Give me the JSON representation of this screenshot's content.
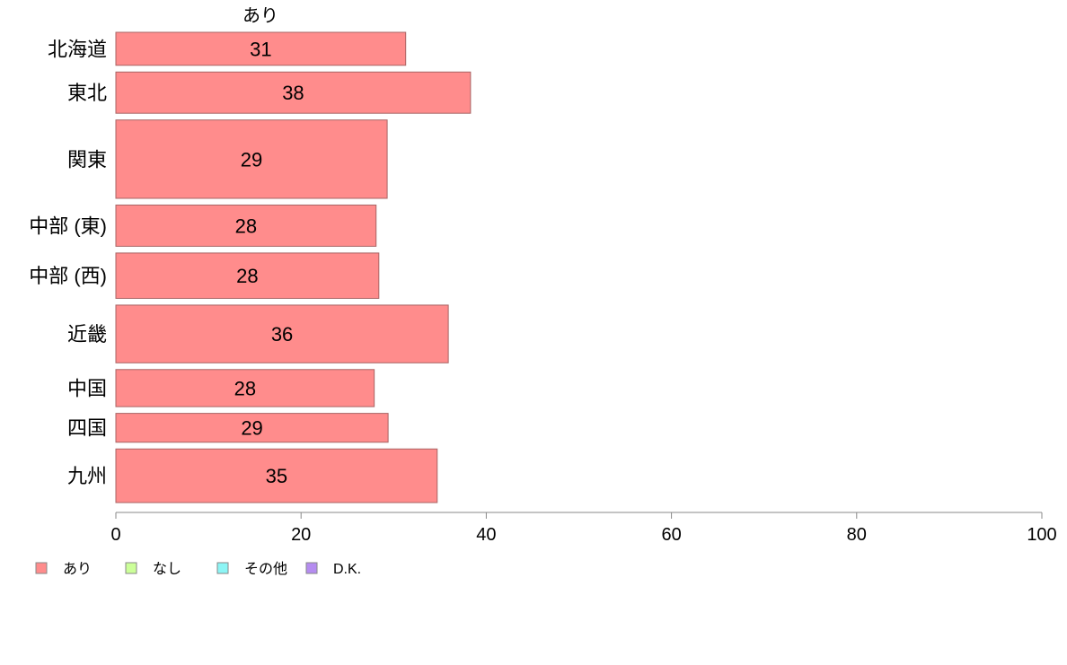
{
  "chart_data": {
    "type": "bar",
    "orientation": "horizontal",
    "title": "",
    "series_header": "あり",
    "categories": [
      "北海道",
      "東北",
      "関東",
      "中部 (東)",
      "中部 (西)",
      "近畿",
      "中国",
      "四国",
      "九州"
    ],
    "category_weights": [
      8,
      10,
      19,
      10,
      11,
      14,
      9,
      7,
      13
    ],
    "series": [
      {
        "name": "あり",
        "values": [
          31.3,
          38.3,
          29.3,
          28.1,
          28.4,
          35.9,
          27.9,
          29.4,
          34.7
        ]
      }
    ],
    "data_labels": [
      "31",
      "38",
      "29",
      "28",
      "28",
      "36",
      "28",
      "29",
      "35"
    ],
    "xlim": [
      0,
      100
    ],
    "xticks": [
      0,
      20,
      40,
      60,
      80,
      100
    ],
    "xlabel": "",
    "ylabel": "",
    "grid": false,
    "legend": {
      "position": "bottom-left",
      "entries": [
        {
          "label": "あり",
          "color": "#ff8c8c"
        },
        {
          "label": "なし",
          "color": "#ccff99"
        },
        {
          "label": "その他",
          "color": "#8cf5f5"
        },
        {
          "label": "D.K.",
          "color": "#b58cf0"
        }
      ]
    },
    "colors": {
      "bar_fill": "#ff8c8c",
      "bar_stroke": "#a86464",
      "axis": "#888888"
    }
  }
}
